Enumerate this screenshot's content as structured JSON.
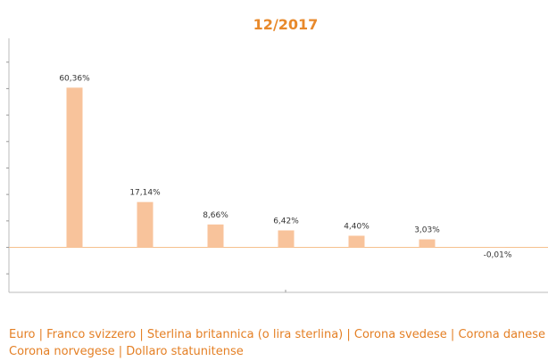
{
  "chart_data": {
    "type": "bar",
    "title": "12/2017",
    "categories": [
      "Euro",
      "Franco svizzero",
      "Sterlina britannica (o lira sterlina)",
      "Corona svedese",
      "Corona danese",
      "Corona norvegese",
      "Dollaro statunitense"
    ],
    "values": [
      60.36,
      17.14,
      8.66,
      6.42,
      4.4,
      3.03,
      -0.01
    ],
    "value_labels": [
      "60,36%",
      "17,14%",
      "8,66%",
      "6,42%",
      "4,40%",
      "3,03%",
      "-0,01%"
    ],
    "color": "#f8c39b",
    "ylim": [
      -17,
      79
    ],
    "yticks": [
      -10,
      0,
      10,
      20,
      30,
      40,
      50,
      60,
      70
    ]
  }
}
